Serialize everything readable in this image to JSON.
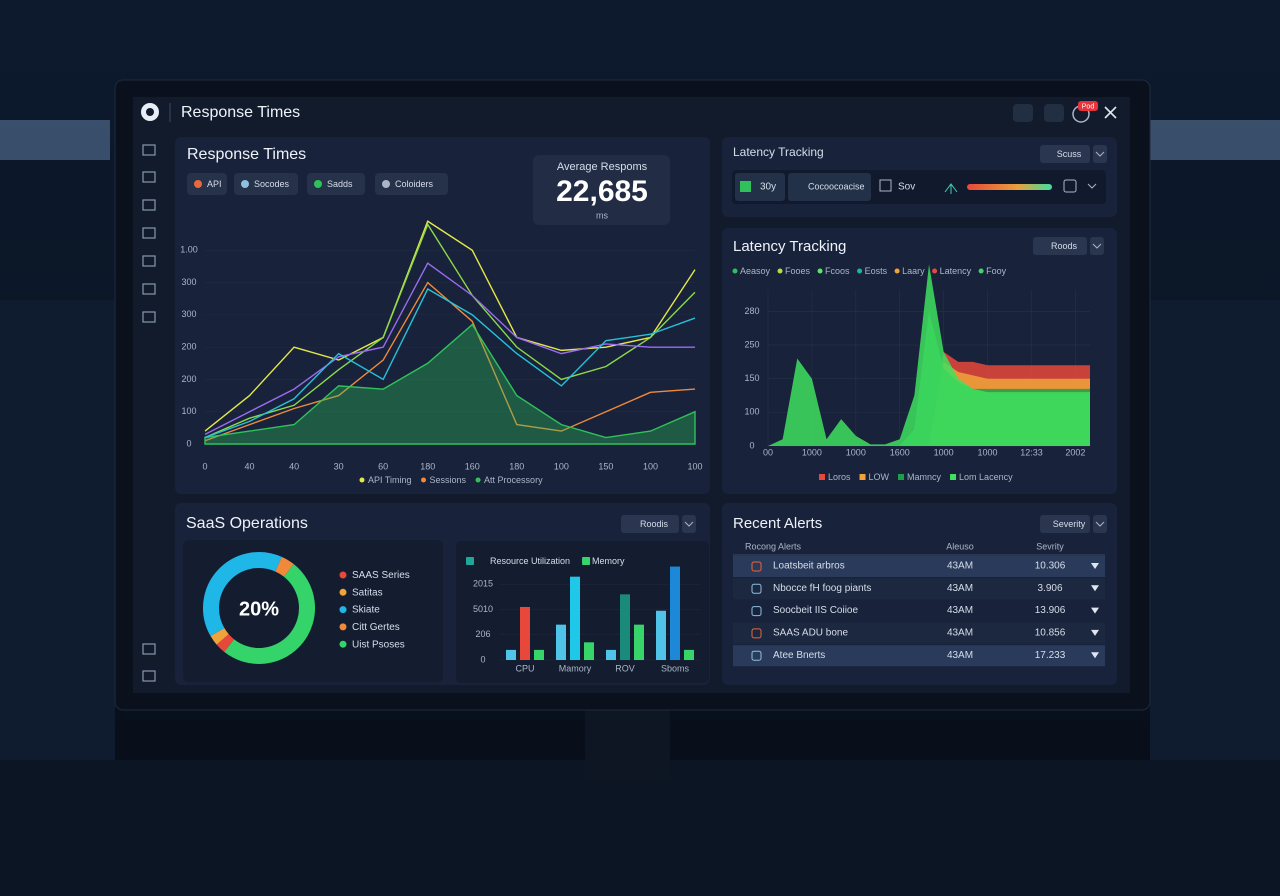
{
  "header": {
    "title": "Response Times",
    "badge": "Pod"
  },
  "latency_status": {
    "title": "Latency Tracking",
    "button": "Scuss",
    "items": [
      "30y",
      "Cocoocoacise",
      "Sov"
    ]
  },
  "alerts": {
    "title": "Recent Alerts",
    "button": "Severity",
    "columns": [
      "Rocong Alerts",
      "Aleuso",
      "Sevrity"
    ],
    "rows": [
      [
        "Loatsbeit arbros",
        "43AM",
        "10.306"
      ],
      [
        "Nbocce fH foog piants",
        "43AM",
        "3.906"
      ],
      [
        "Soocbeit IIS Coiioe",
        "43AM",
        "13.906"
      ],
      [
        "SAAS ADU bone",
        "43AM",
        "10.856"
      ],
      [
        "Atee Bnerts",
        "43AM",
        "17.233"
      ]
    ]
  },
  "chart_data": [
    {
      "type": "line",
      "title": "Response Times",
      "tabs": [
        "API",
        "Socodes",
        "Sadds",
        "Coloiders"
      ],
      "stat": {
        "label": "Average Respoms",
        "value": "22,685",
        "unit": "ms"
      },
      "categories": [
        "0",
        "40",
        "40",
        "30",
        "60",
        "180",
        "160",
        "180",
        "100",
        "150",
        "100",
        "100"
      ],
      "ylim": [
        0,
        700
      ],
      "yticks": [
        0,
        100,
        200,
        {
          "value": 300,
          "label": "200"
        },
        {
          "value": 400,
          "label": "300"
        },
        {
          "value": 500,
          "label": "300"
        },
        {
          "value": 600,
          "label": "1.00"
        }
      ],
      "series": [
        {
          "name": "API Timing",
          "color": "#e3e84a",
          "values": [
            40,
            150,
            300,
            260,
            330,
            690,
            600,
            330,
            290,
            300,
            330,
            540
          ]
        },
        {
          "name": "Sessions",
          "color": "#f08a3a",
          "values": [
            10,
            60,
            110,
            150,
            260,
            500,
            380,
            60,
            40,
            100,
            160,
            170
          ]
        },
        {
          "name": "Att Processory",
          "color": "#2fc25a",
          "values": [
            20,
            40,
            60,
            180,
            170,
            250,
            370,
            150,
            60,
            20,
            40,
            100
          ]
        },
        {
          "color": "#8bd94a",
          "values": [
            20,
            80,
            120,
            230,
            330,
            680,
            460,
            300,
            200,
            240,
            330,
            470
          ]
        },
        {
          "color": "#9a6cf0",
          "values": [
            30,
            100,
            170,
            270,
            300,
            560,
            460,
            330,
            280,
            310,
            300,
            300
          ]
        },
        {
          "color": "#27c1d8",
          "values": [
            20,
            70,
            140,
            280,
            200,
            480,
            400,
            280,
            180,
            320,
            340,
            390
          ]
        }
      ]
    },
    {
      "type": "area",
      "title": "Latency Tracking",
      "button": "Roods",
      "top_legend": [
        {
          "label": "Aeasoy",
          "color": "#2fc25a"
        },
        {
          "label": "Fooes",
          "color": "#b9d94a"
        },
        {
          "label": "Fcoos",
          "color": "#5be36a"
        },
        {
          "label": "Eosts",
          "color": "#1fb59a"
        },
        {
          "label": "Laary",
          "color": "#f0a33a"
        },
        {
          "label": "Latency",
          "color": "#e8483b"
        },
        {
          "label": "Fooy",
          "color": "#3fd46a"
        }
      ],
      "x": [
        0,
        1,
        2,
        3,
        4,
        5,
        6,
        7,
        8,
        9,
        10,
        11,
        12,
        13,
        14,
        15,
        16,
        17,
        18,
        19,
        20,
        21,
        22
      ],
      "xlim": [
        0,
        22
      ],
      "xticks": [
        {
          "value": 0,
          "label": "00"
        },
        {
          "value": 3,
          "label": "1000"
        },
        {
          "value": 6,
          "label": "1000"
        },
        {
          "value": 9,
          "label": "1600"
        },
        {
          "value": 12,
          "label": "1000"
        },
        {
          "value": 15,
          "label": "1000"
        },
        {
          "value": 18,
          "label": "12:33"
        },
        {
          "value": 21,
          "label": "2002"
        }
      ],
      "ylim": [
        0,
        550
      ],
      "yticks": [
        0,
        100,
        {
          "value": 200,
          "label": "150"
        },
        {
          "value": 300,
          "label": "250"
        },
        {
          "value": 400,
          "label": "280"
        }
      ],
      "series": [
        {
          "name": "Loros",
          "color": "#e8483b",
          "values": [
            0,
            0,
            0,
            0,
            0,
            0,
            0,
            0,
            0,
            0,
            0,
            0,
            280,
            250,
            250,
            240,
            240,
            240,
            240,
            240,
            240,
            240,
            240
          ]
        },
        {
          "name": "LOW",
          "color": "#f0a33a",
          "values": [
            0,
            0,
            0,
            0,
            0,
            0,
            0,
            0,
            0,
            0,
            0,
            0,
            250,
            220,
            210,
            200,
            200,
            200,
            200,
            200,
            200,
            200,
            200
          ]
        },
        {
          "name": "Mamncy",
          "color": "#1f9e4a",
          "values": [
            0,
            0,
            0,
            0,
            0,
            0,
            0,
            0,
            0,
            0,
            50,
            400,
            230,
            190,
            170,
            170,
            170,
            170,
            170,
            170,
            170,
            170,
            170
          ]
        },
        {
          "name": "Lom Lacency",
          "color": "#3fe060",
          "values": [
            0,
            20,
            260,
            200,
            20,
            80,
            30,
            5,
            5,
            20,
            150,
            540,
            280,
            200,
            170,
            160,
            160,
            160,
            160,
            160,
            160,
            160,
            160
          ]
        }
      ]
    },
    {
      "type": "pie",
      "title": "SaaS Operations",
      "button": "Roodis",
      "center_label": "20%",
      "categories": [
        "SAAS Series",
        "Satitas",
        "Skiate",
        "Citt Gertes",
        "Uist Psoses"
      ],
      "values": [
        3,
        3,
        40,
        4,
        50
      ],
      "colors": [
        "#e8483b",
        "#f0a33a",
        "#1fb6e8",
        "#f08a3a",
        "#34d46a"
      ]
    },
    {
      "type": "bar",
      "categories": [
        "CPU",
        "Mamory",
        "ROV",
        "Sboms"
      ],
      "ylim": [
        0,
        400
      ],
      "yticks": [
        0,
        {
          "value": 100,
          "label": "206"
        },
        {
          "value": 200,
          "label": "5010"
        },
        {
          "value": 300,
          "label": "2015"
        }
      ],
      "series": [
        {
          "color": "#4fc3e8",
          "values": [
            40,
            140,
            40,
            195
          ]
        },
        {
          "name": "Resource Utilization",
          "color": "#1fa89a",
          "colors": [
            "#e8483b",
            "#1fc8e8",
            "#1a8a7a",
            "#1e88d8"
          ],
          "values": [
            210,
            330,
            260,
            370
          ]
        },
        {
          "name": "Memory",
          "color": "#37d46a",
          "values": [
            40,
            70,
            140,
            40
          ]
        }
      ]
    }
  ]
}
